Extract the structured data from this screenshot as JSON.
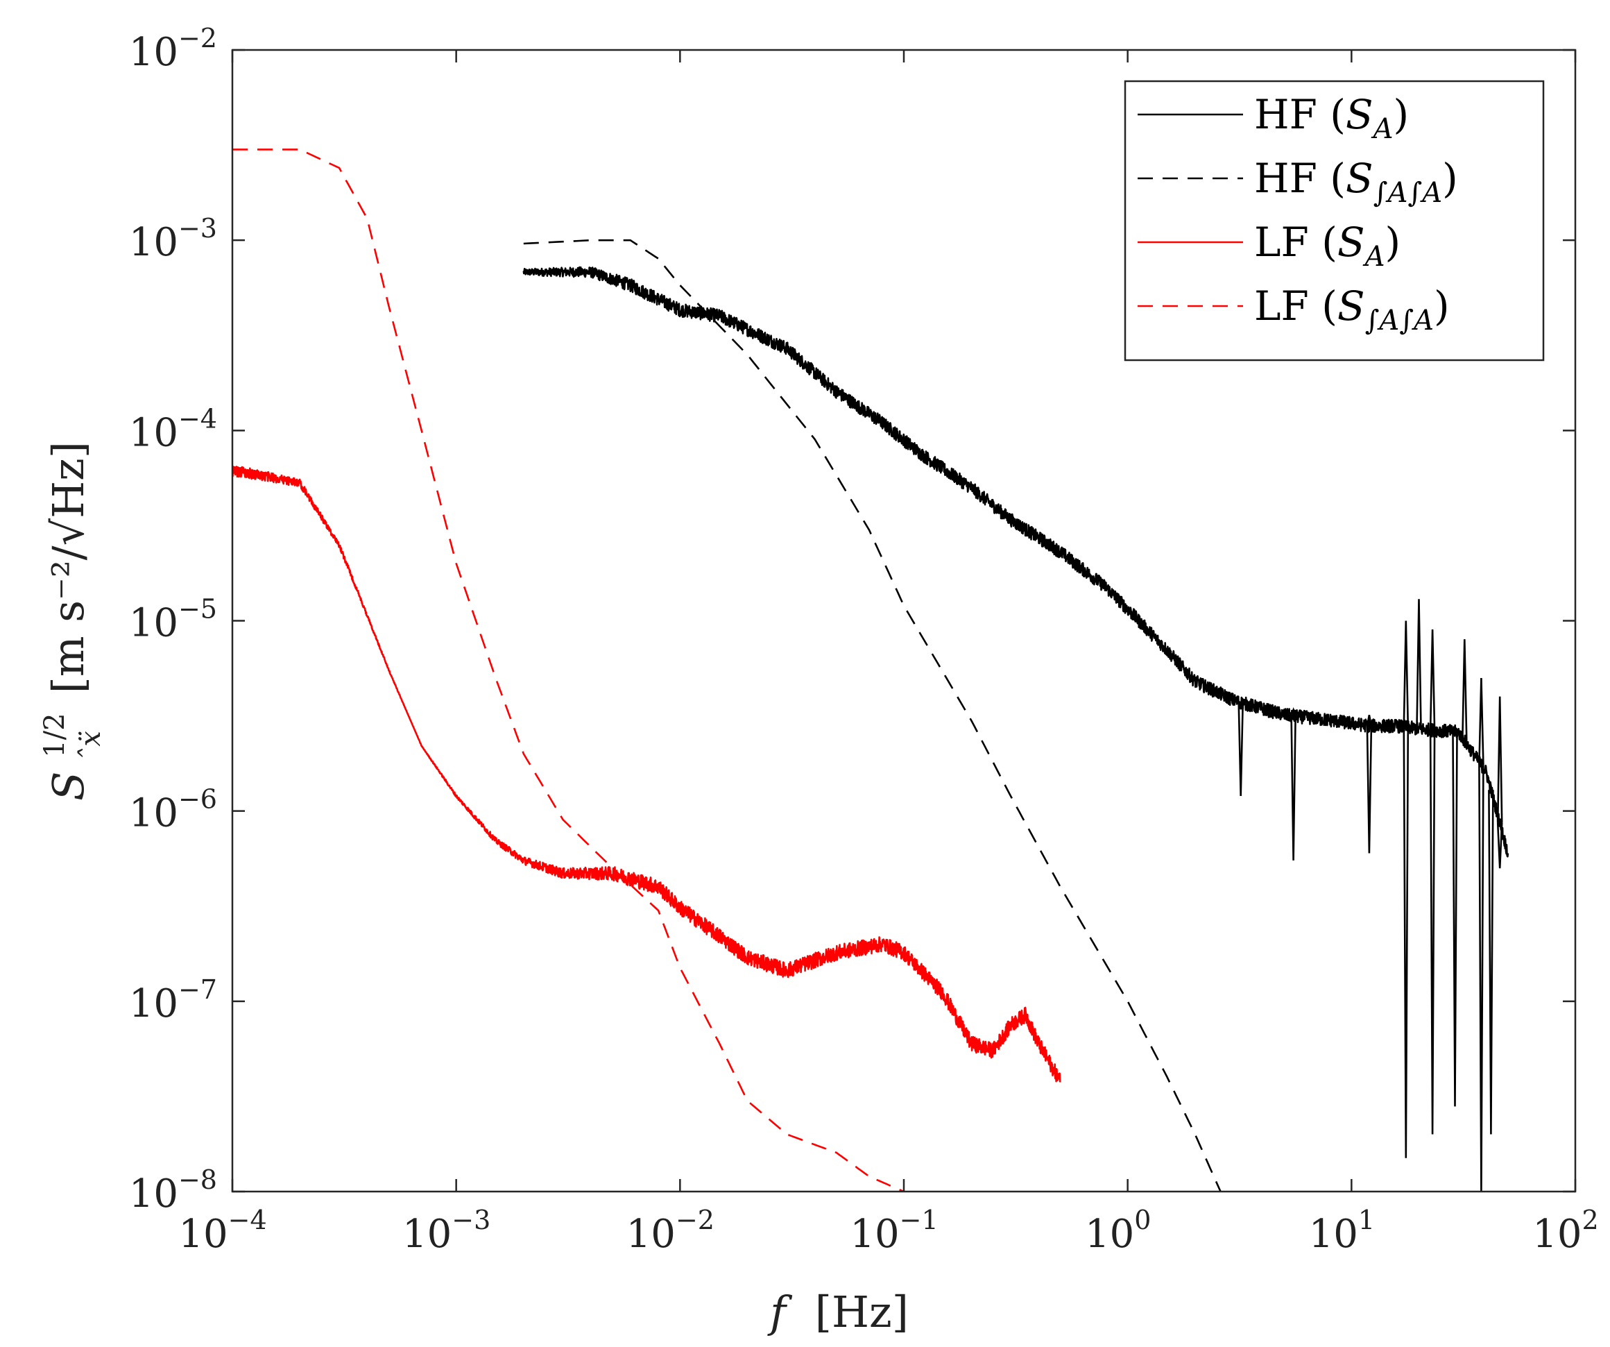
{
  "chart_data": {
    "type": "line",
    "title": "",
    "xlabel": "f [Hz]",
    "xlabel_var": "f",
    "xlabel_unit": "[Hz]",
    "ylabel_var": "S",
    "ylabel_exp": "1/2",
    "ylabel_sub": "̂ẍ",
    "ylabel_unit": "[m s⁻²/√Hz]",
    "xscale": "log",
    "yscale": "log",
    "xlim": [
      0.0001,
      100
    ],
    "ylim": [
      1e-08,
      0.01
    ],
    "x_ticks": [
      {
        "value": 0.0001,
        "base": "10",
        "exp": "−4"
      },
      {
        "value": 0.001,
        "base": "10",
        "exp": "−3"
      },
      {
        "value": 0.01,
        "base": "10",
        "exp": "−2"
      },
      {
        "value": 0.1,
        "base": "10",
        "exp": "−1"
      },
      {
        "value": 1,
        "base": "10",
        "exp": "0"
      },
      {
        "value": 10,
        "base": "10",
        "exp": "1"
      },
      {
        "value": 100,
        "base": "10",
        "exp": "2"
      }
    ],
    "y_ticks": [
      {
        "value": 1e-08,
        "base": "10",
        "exp": "−8"
      },
      {
        "value": 1e-07,
        "base": "10",
        "exp": "−7"
      },
      {
        "value": 1e-06,
        "base": "10",
        "exp": "−6"
      },
      {
        "value": 1e-05,
        "base": "10",
        "exp": "−5"
      },
      {
        "value": 0.0001,
        "base": "10",
        "exp": "−4"
      },
      {
        "value": 0.001,
        "base": "10",
        "exp": "−3"
      },
      {
        "value": 0.01,
        "base": "10",
        "exp": "−2"
      }
    ],
    "grid": false,
    "legend_position": "top-right",
    "series": [
      {
        "name": "HF (S_A)",
        "label_main": "HF (",
        "label_var": "S",
        "label_sub": "A",
        "label_close": ")",
        "color": "#000000",
        "style": "solid",
        "noise": 0.035,
        "x": [
          0.002,
          0.004,
          0.006,
          0.01,
          0.015,
          0.02,
          0.03,
          0.05,
          0.08,
          0.12,
          0.2,
          0.3,
          0.5,
          0.8,
          1.0,
          1.5,
          2.0,
          3.0,
          5.0,
          8.0,
          12.0,
          16.0,
          20.0,
          30.0,
          40.0,
          50.0
        ],
        "y": [
          0.00068,
          0.00068,
          0.00058,
          0.00043,
          0.0004,
          0.00034,
          0.00027,
          0.00016,
          0.00011,
          7.5e-05,
          5e-05,
          3.4e-05,
          2.3e-05,
          1.5e-05,
          1.15e-05,
          7e-06,
          4.8e-06,
          3.8e-06,
          3.2e-06,
          3e-06,
          2.8e-06,
          2.8e-06,
          2.7e-06,
          2.6e-06,
          1.6e-06,
          6e-07
        ],
        "spikes": [
          {
            "x": 3.2,
            "y": 1.2e-06
          },
          {
            "x": 5.5,
            "y": 5.5e-07
          },
          {
            "x": 5.5,
            "y": 3.4e-06
          },
          {
            "x": 12.0,
            "y": 6e-07
          },
          {
            "x": 12.0,
            "y": 3.2e-06
          },
          {
            "x": 17.5,
            "y": 1.5e-08
          },
          {
            "x": 17.5,
            "y": 1e-05
          },
          {
            "x": 20.0,
            "y": 1.3e-05
          },
          {
            "x": 23.0,
            "y": 2e-08
          },
          {
            "x": 23.0,
            "y": 9e-06
          },
          {
            "x": 29.0,
            "y": 2.8e-08
          },
          {
            "x": 32.0,
            "y": 8e-06
          },
          {
            "x": 38.0,
            "y": 1e-08
          },
          {
            "x": 38.0,
            "y": 5e-06
          },
          {
            "x": 42.0,
            "y": 2e-08
          },
          {
            "x": 46.0,
            "y": 5e-07
          },
          {
            "x": 46.0,
            "y": 4e-06
          }
        ]
      },
      {
        "name": "HF (S_∫A∫A)",
        "label_main": "HF (",
        "label_var": "S",
        "label_sub": "∫A∫A",
        "label_close": ")",
        "color": "#000000",
        "style": "dashed",
        "noise": 0.0,
        "x": [
          0.002,
          0.004,
          0.006,
          0.008,
          0.01,
          0.02,
          0.04,
          0.07,
          0.1,
          0.2,
          0.3,
          0.5,
          1.0,
          1.5,
          2.0,
          2.6
        ],
        "y": [
          0.00096,
          0.001,
          0.001,
          0.0008,
          0.00058,
          0.00025,
          9e-05,
          3e-05,
          1.2e-05,
          3e-06,
          1.2e-06,
          4e-07,
          1e-07,
          4e-08,
          2e-08,
          1e-08
        ],
        "spikes": []
      },
      {
        "name": "LF (S_A)",
        "label_main": "LF (",
        "label_var": "S",
        "label_sub": "A",
        "label_close": ")",
        "color": "#ff0000",
        "style": "solid",
        "noise": 0.04,
        "x": [
          0.0001,
          0.0002,
          0.0003,
          0.0005,
          0.0007,
          0.001,
          0.0015,
          0.002,
          0.003,
          0.005,
          0.008,
          0.01,
          0.015,
          0.02,
          0.03,
          0.05,
          0.08,
          0.1,
          0.15,
          0.2,
          0.25,
          0.3,
          0.35,
          0.4,
          0.5
        ],
        "y": [
          6.2e-05,
          5.3e-05,
          2.5e-05,
          5.5e-06,
          2.2e-06,
          1.2e-06,
          7e-07,
          5.5e-07,
          4.7e-07,
          4.7e-07,
          4e-07,
          3.1e-07,
          2.2e-07,
          1.7e-07,
          1.45e-07,
          1.8e-07,
          2e-07,
          1.8e-07,
          1.1e-07,
          6e-08,
          5.5e-08,
          7.5e-08,
          8.5e-08,
          6e-08,
          3.8e-08
        ],
        "spikes": []
      },
      {
        "name": "LF (S_∫A∫A)",
        "label_main": "LF (",
        "label_var": "S",
        "label_sub": "∫A∫A",
        "label_close": ")",
        "color": "#ff0000",
        "style": "dashed",
        "noise": 0.0,
        "x": [
          0.0001,
          0.0002,
          0.0003,
          0.0004,
          0.0005,
          0.0007,
          0.001,
          0.0015,
          0.002,
          0.003,
          0.005,
          0.008,
          0.01,
          0.015,
          0.02,
          0.03,
          0.05,
          0.07,
          0.1
        ],
        "y": [
          0.003,
          0.003,
          0.0024,
          0.0013,
          0.00045,
          0.0001,
          2e-05,
          5e-06,
          2e-06,
          9e-07,
          5e-07,
          3e-07,
          1.5e-07,
          6e-08,
          3e-08,
          2e-08,
          1.6e-08,
          1.2e-08,
          1e-08
        ],
        "spikes": []
      }
    ]
  }
}
